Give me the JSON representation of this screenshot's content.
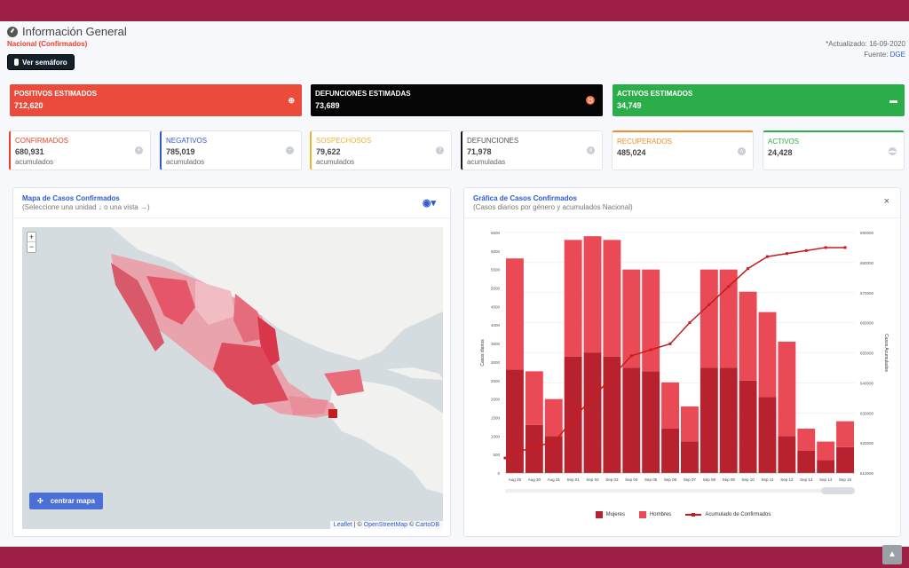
{
  "header": {
    "title": "Información General",
    "subtitle": "Nacional (Confirmados)",
    "semaforo_button": "Ver semáforo",
    "updated": "*Actualizado: 16-09-2020",
    "source_label": "Fuente:",
    "source_link": "DGE"
  },
  "big_cards": [
    {
      "label": "POSITIVOS ESTIMADOS",
      "value": "712,620",
      "color": "#ea4b3b",
      "icon": "plus-circle-icon"
    },
    {
      "label": "DEFUNCIONES ESTIMADAS",
      "value": "73,689",
      "color": "#050505",
      "icon": "ribbon-icon"
    },
    {
      "label": "ACTIVOS ESTIMADOS",
      "value": "34,749",
      "color": "#2bae4a",
      "icon": "bed-icon"
    }
  ],
  "small_cards": [
    {
      "label": "CONFIRMADOS",
      "value": "680,931",
      "unit": "acumulados",
      "icon": "plus-circle-icon"
    },
    {
      "label": "NEGATIVOS",
      "value": "785,019",
      "unit": "acumulados",
      "icon": "minus-circle-icon"
    },
    {
      "label": "SOSPECHOSOS",
      "value": "79,622",
      "unit": "acumulados",
      "icon": "question-circle-icon"
    },
    {
      "label": "DEFUNCIONES",
      "value": "71,978",
      "unit": "acumuladas",
      "icon": "ribbon-icon"
    },
    {
      "label": "RECUPERADOS",
      "value": "485,024",
      "icon": "walking-person-icon"
    },
    {
      "label": "ACTIVOS",
      "value": "24,428",
      "icon": "bed-icon"
    }
  ],
  "map_panel": {
    "title": "Mapa de Casos Confirmados",
    "subtitle": "(Seleccione una unidad ↓ o una vista →)",
    "zoom_in": "+",
    "zoom_out": "−",
    "center_button": "centrar mapa",
    "attribution_leaflet": "Leaflet",
    "attribution_sep1": "| ©",
    "attribution_osm": "OpenStreetMap",
    "attribution_sep2": "©",
    "attribution_carto": "CartoDB"
  },
  "chart_panel": {
    "title": "Gráfica de Casos Confirmados",
    "subtitle": "(Casos diarios por género y acumulados Nacional)",
    "close": "×"
  },
  "chart_data": {
    "type": "bar",
    "categories": [
      "Aug 29",
      "Aug 30",
      "Aug 31",
      "Sep 01",
      "Sep 02",
      "Sep 03",
      "Sep 04",
      "Sep 05",
      "Sep 06",
      "Sep 07",
      "Sep 08",
      "Sep 09",
      "Sep 10",
      "Sep 11",
      "Sep 12",
      "Sep 13",
      "Sep 14",
      "Sep 15"
    ],
    "series": [
      {
        "name": "Mujeres",
        "values": [
          2800,
          1300,
          1000,
          3150,
          3250,
          3150,
          2850,
          2750,
          1200,
          850,
          2850,
          2850,
          2500,
          2050,
          1000,
          600,
          350,
          700
        ],
        "color": "#b8222e"
      },
      {
        "name": "Hombres",
        "values": [
          3000,
          1450,
          1000,
          3150,
          3150,
          3150,
          2650,
          2750,
          1250,
          950,
          2650,
          2650,
          2400,
          2300,
          2550,
          600,
          500,
          700
        ],
        "color": "#e94a55"
      },
      {
        "name": "Acumulado de Confirmados",
        "axis": "right",
        "values": [
          615000,
          619000,
          620000,
          628000,
          635000,
          642000,
          649000,
          651000,
          653000,
          660000,
          666000,
          672000,
          678000,
          682000,
          683000,
          684000,
          685000,
          685000
        ],
        "color": "#c91b1b"
      }
    ],
    "ylabel": "Casos diarios",
    "ylabel_right": "Casos Acumulados",
    "ylim": [
      0,
      6500
    ],
    "ylim_right": [
      610000,
      690000
    ],
    "yticks": [
      0,
      500,
      1000,
      1500,
      2000,
      2500,
      3000,
      3500,
      4000,
      4500,
      5000,
      5500,
      6000,
      6500
    ],
    "yticks_right": [
      610000,
      620000,
      630000,
      640000,
      650000,
      660000,
      670000,
      680000,
      690000
    ],
    "stacked": true,
    "grid": true,
    "legend": "bottom"
  }
}
